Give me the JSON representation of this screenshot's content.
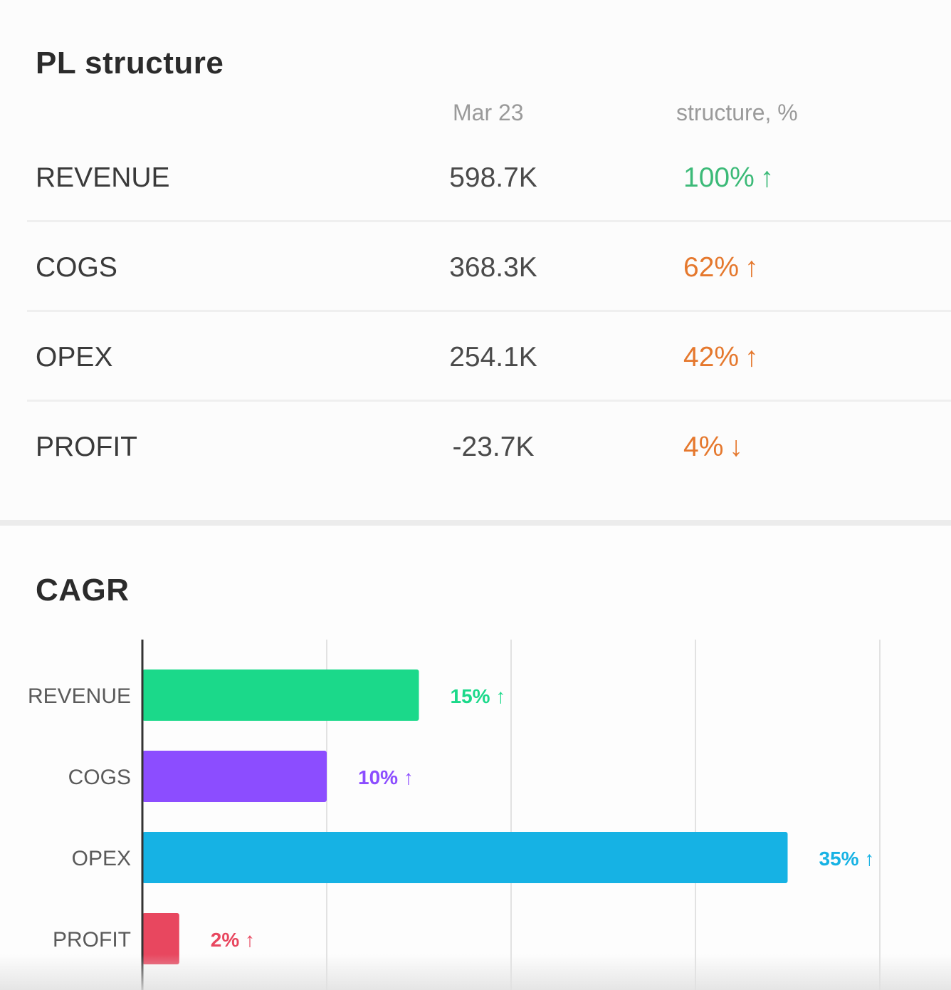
{
  "pl_structure": {
    "title": "PL structure",
    "columns": {
      "period": "Mar 23",
      "structure": "structure, %"
    },
    "rows": [
      {
        "label": "REVENUE",
        "amount": "598.7K",
        "pct": "100%",
        "trend": "up",
        "arrow": "↑",
        "color": "#3cba78"
      },
      {
        "label": "COGS",
        "amount": "368.3K",
        "pct": "62%",
        "trend": "up",
        "arrow": "↑",
        "color": "#e5782d"
      },
      {
        "label": "OPEX",
        "amount": "254.1K",
        "pct": "42%",
        "trend": "up",
        "arrow": "↑",
        "color": "#e5782d"
      },
      {
        "label": "PROFIT",
        "amount": "-23.7K",
        "pct": "4%",
        "trend": "down",
        "arrow": "↓",
        "color": "#e5782d"
      }
    ]
  },
  "chart_data": {
    "type": "bar",
    "orientation": "horizontal",
    "title": "CAGR",
    "categories": [
      "REVENUE",
      "COGS",
      "OPEX",
      "PROFIT"
    ],
    "values": [
      15,
      10,
      35,
      2
    ],
    "data_labels": [
      "15% ↑",
      "10% ↑",
      "35% ↑",
      "2% ↑"
    ],
    "colors": [
      "#1bd98a",
      "#8c4dff",
      "#16b2e4",
      "#e8475f"
    ],
    "xlim": [
      0,
      40
    ],
    "x_gridlines": [
      0,
      10,
      20,
      30,
      40
    ],
    "grid": true,
    "legend": "none"
  }
}
